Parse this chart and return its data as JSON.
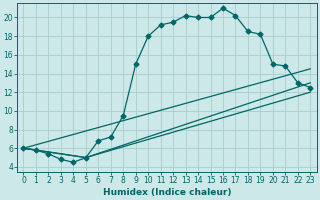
{
  "xlabel": "Humidex (Indice chaleur)",
  "bg_color": "#cce8e8",
  "grid_color": "#aacccc",
  "line_color": "#006666",
  "xlim": [
    -0.5,
    23.5
  ],
  "ylim": [
    3.5,
    21.5
  ],
  "yticks": [
    4,
    6,
    8,
    10,
    12,
    14,
    16,
    18,
    20
  ],
  "xticks": [
    0,
    1,
    2,
    3,
    4,
    5,
    6,
    7,
    8,
    9,
    10,
    11,
    12,
    13,
    14,
    15,
    16,
    17,
    18,
    19,
    20,
    21,
    22,
    23
  ],
  "curve1_x": [
    0,
    1,
    2,
    3,
    4,
    5,
    6,
    7,
    8,
    9,
    10,
    11,
    12,
    13,
    14,
    15,
    16,
    17,
    18,
    19,
    20,
    21,
    22,
    23
  ],
  "curve1_y": [
    6.0,
    5.8,
    5.4,
    4.8,
    4.5,
    5.0,
    6.8,
    7.2,
    9.5,
    15.0,
    18.0,
    19.2,
    19.5,
    20.2,
    20.0,
    20.0,
    21.0,
    20.2,
    18.5,
    18.2,
    15.0,
    14.8,
    13.0,
    12.5
  ],
  "line1_x": [
    0,
    23
  ],
  "line1_y": [
    6.0,
    14.5
  ],
  "line2_x": [
    0,
    5,
    23
  ],
  "line2_y": [
    6.0,
    5.0,
    13.0
  ],
  "line3_x": [
    0,
    5,
    23
  ],
  "line3_y": [
    6.0,
    5.0,
    12.0
  ]
}
